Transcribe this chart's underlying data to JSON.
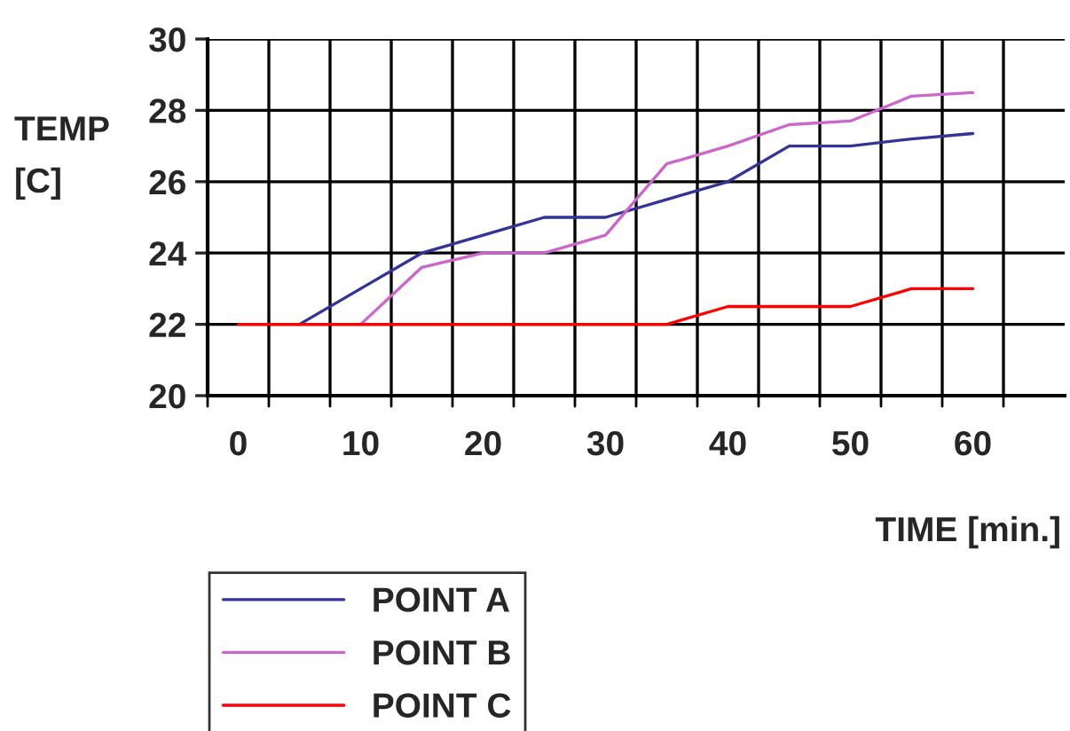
{
  "chart_data": {
    "type": "line",
    "xlabel": "TIME [min.]",
    "ylabel": "TEMP\n[C]",
    "categories": [
      "0",
      null,
      "10",
      null,
      "20",
      null,
      "30",
      null,
      "40",
      null,
      "50",
      null,
      "60",
      null
    ],
    "series": [
      {
        "name": "POINT A",
        "color": "#333399",
        "values": [
          null,
          22,
          23,
          24,
          24.5,
          25,
          25,
          25.5,
          26,
          27,
          27,
          27.2,
          27.35,
          null
        ]
      },
      {
        "name": "POINT B",
        "color": "#cc66cc",
        "values": [
          null,
          null,
          22,
          23.6,
          24,
          24,
          24.5,
          26.5,
          27,
          27.6,
          27.7,
          28.4,
          28.5,
          null
        ]
      },
      {
        "name": "POINT C",
        "color": "#ff0000",
        "values": [
          22,
          22,
          22,
          22,
          22,
          22,
          22,
          22,
          22.5,
          22.5,
          22.5,
          23,
          23,
          null
        ]
      }
    ],
    "ylim": [
      20,
      30
    ],
    "yticks": [
      20,
      22,
      24,
      26,
      28,
      30
    ],
    "grid": true,
    "legend": "bottom left",
    "marker": "none",
    "line_style": "solid"
  }
}
